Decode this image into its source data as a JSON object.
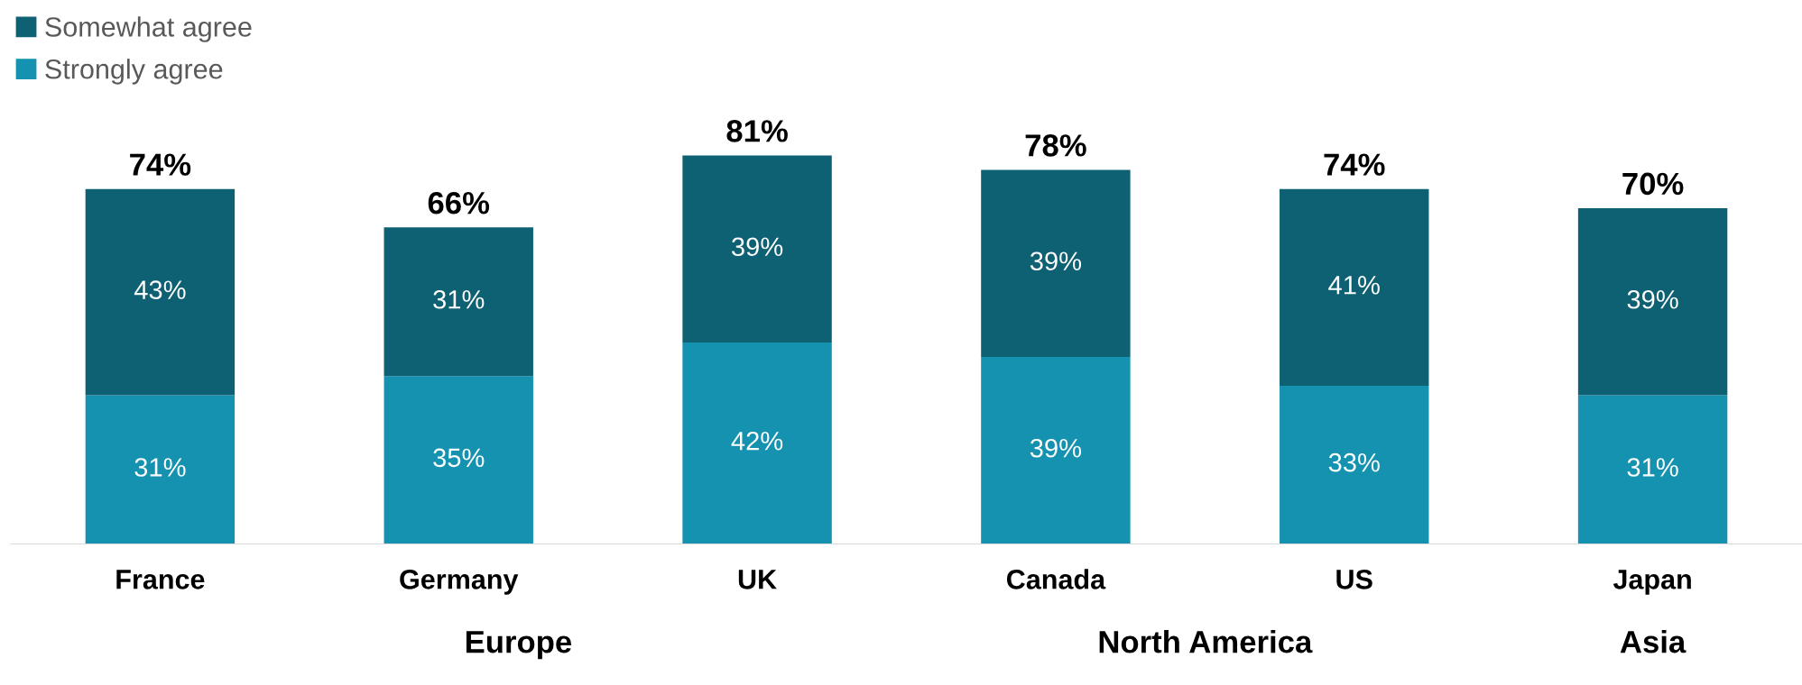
{
  "chart_data": {
    "type": "bar",
    "stacked": true,
    "legend": "top left",
    "grid": false,
    "categories": [
      "France",
      "Germany",
      "UK",
      "Canada",
      "US",
      "Japan"
    ],
    "series": [
      {
        "name": "Strongly agree",
        "color": "#1592b0",
        "values": [
          31,
          35,
          42,
          39,
          33,
          31
        ],
        "value_labels": [
          "31%",
          "35%",
          "42%",
          "39%",
          "33%",
          "31%"
        ]
      },
      {
        "name": "Somewhat agree",
        "color": "#0e6073",
        "values": [
          43,
          31,
          39,
          39,
          41,
          39
        ],
        "value_labels": [
          "43%",
          "31%",
          "39%",
          "39%",
          "41%",
          "39%"
        ]
      }
    ],
    "totals": [
      "74%",
      "66%",
      "81%",
      "78%",
      "74%",
      "70%"
    ],
    "annotations": [
      "Europe",
      "North America",
      "Asia"
    ]
  }
}
